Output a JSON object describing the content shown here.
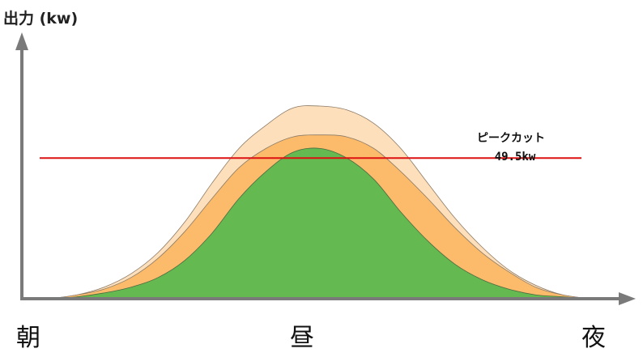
{
  "chart_data": {
    "type": "area",
    "ylabel": "出力 (kw)",
    "x_ticks": [
      "朝",
      "昼",
      "夜"
    ],
    "x_range": [
      0,
      100
    ],
    "y_range": [
      0,
      100
    ],
    "grid": false,
    "legend": "none",
    "series": [
      {
        "fill": "#fde0bb",
        "stroke": "#8c7a66",
        "x": [
          0,
          5,
          10,
          15,
          20,
          25,
          30,
          35,
          40,
          45,
          50,
          55,
          60,
          65,
          70,
          75,
          80,
          85,
          90,
          95,
          100
        ],
        "values": [
          0,
          2,
          6,
          13,
          24,
          40,
          60,
          78,
          90,
          99,
          100,
          98,
          91,
          78,
          60,
          42,
          27,
          15,
          7,
          2,
          0
        ]
      },
      {
        "fill": "#fbbb6b",
        "stroke": "#8c7a66",
        "x": [
          0,
          5,
          10,
          15,
          20,
          25,
          30,
          35,
          40,
          45,
          50,
          55,
          60,
          65,
          70,
          75,
          80,
          85,
          90,
          95,
          100
        ],
        "values": [
          0,
          2,
          5,
          11,
          21,
          35,
          52,
          68,
          78,
          84,
          85,
          84,
          78,
          66,
          52,
          37,
          24,
          14,
          6,
          2,
          0
        ]
      },
      {
        "fill": "#65b951",
        "stroke": "#4a6a40",
        "x": [
          0,
          5,
          10,
          15,
          20,
          25,
          30,
          35,
          40,
          45,
          50,
          55,
          60,
          65,
          70,
          75,
          80,
          85,
          90,
          95,
          100
        ],
        "values": [
          0,
          1,
          3,
          6,
          11,
          20,
          34,
          52,
          66,
          76,
          78,
          73,
          62,
          45,
          30,
          18,
          10,
          5,
          2,
          1,
          0
        ]
      }
    ],
    "annotations": [
      {
        "type": "hline",
        "y": 73,
        "color": "#dd1111",
        "label": "ピークカット",
        "value_label": "49.5kw"
      }
    ]
  },
  "colors": {
    "axis": "#7a7a7a",
    "peak_line": "#dd1111"
  }
}
